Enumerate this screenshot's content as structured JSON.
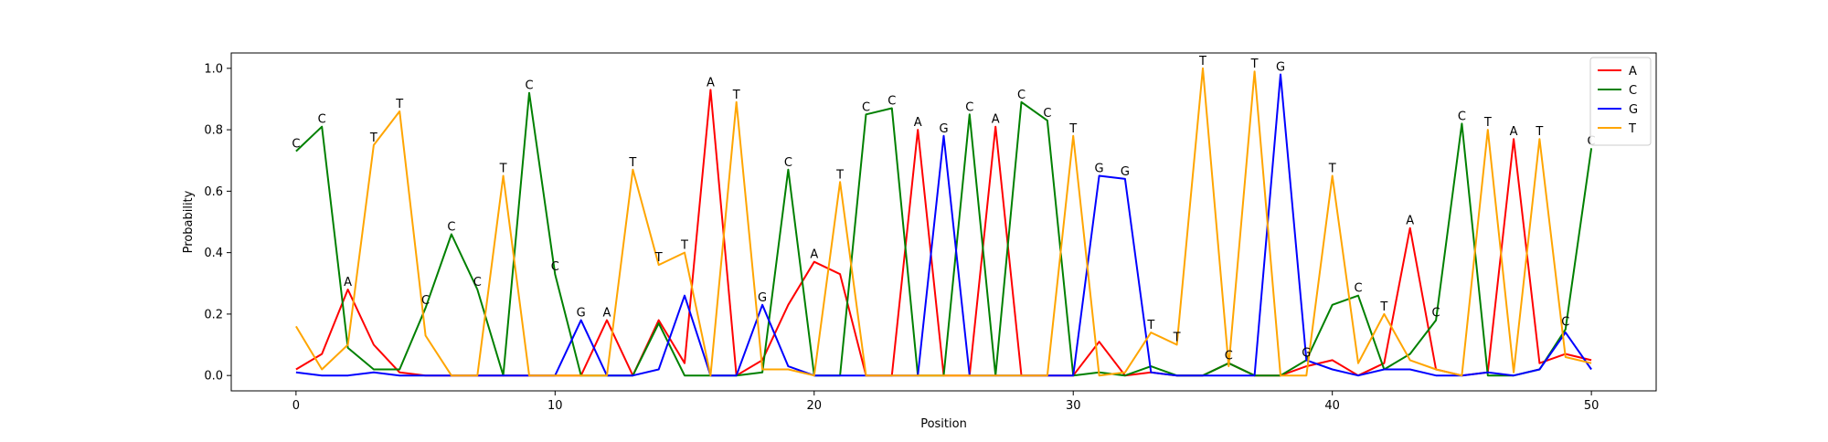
{
  "chart_data": {
    "type": "line",
    "title": "",
    "xlabel": "Position",
    "ylabel": "Probability",
    "xlim": [
      -2.5,
      52.5
    ],
    "ylim": [
      -0.05,
      1.05
    ],
    "xticks": [
      0,
      10,
      20,
      30,
      40,
      50
    ],
    "yticks": [
      0.0,
      0.2,
      0.4,
      0.6,
      0.8,
      1.0
    ],
    "xtick_labels": [
      "0",
      "10",
      "20",
      "30",
      "40",
      "50"
    ],
    "ytick_labels": [
      "0.0",
      "0.2",
      "0.4",
      "0.6",
      "0.8",
      "1.0"
    ],
    "grid": false,
    "legend_position": "top-right",
    "x": [
      0,
      1,
      2,
      3,
      4,
      5,
      6,
      7,
      8,
      9,
      10,
      11,
      12,
      13,
      14,
      15,
      16,
      17,
      18,
      19,
      20,
      21,
      22,
      23,
      24,
      25,
      26,
      27,
      28,
      29,
      30,
      31,
      32,
      33,
      34,
      35,
      36,
      37,
      38,
      39,
      40,
      41,
      42,
      43,
      44,
      45,
      46,
      47,
      48,
      49,
      50
    ],
    "series": [
      {
        "name": "A",
        "color": "#ff0000",
        "values": [
          0.02,
          0.07,
          0.28,
          0.1,
          0.01,
          0.0,
          0.0,
          0.0,
          0.0,
          0.0,
          0.0,
          0.0,
          0.18,
          0.0,
          0.18,
          0.04,
          0.93,
          0.0,
          0.05,
          0.23,
          0.37,
          0.33,
          0.0,
          0.0,
          0.8,
          0.0,
          0.0,
          0.81,
          0.0,
          0.0,
          0.0,
          0.11,
          0.0,
          0.01,
          0.0,
          0.0,
          0.04,
          0.0,
          0.0,
          0.03,
          0.05,
          0.0,
          0.04,
          0.48,
          0.02,
          0.0,
          0.01,
          0.77,
          0.04,
          0.07,
          0.05
        ]
      },
      {
        "name": "C",
        "color": "#008000",
        "values": [
          0.73,
          0.81,
          0.09,
          0.02,
          0.02,
          0.22,
          0.46,
          0.28,
          0.0,
          0.92,
          0.33,
          0.0,
          0.0,
          0.0,
          0.17,
          0.0,
          0.0,
          0.0,
          0.01,
          0.67,
          0.0,
          0.0,
          0.85,
          0.87,
          0.0,
          0.0,
          0.85,
          0.0,
          0.89,
          0.83,
          0.0,
          0.01,
          0.0,
          0.03,
          0.0,
          0.0,
          0.04,
          0.0,
          0.0,
          0.05,
          0.23,
          0.26,
          0.02,
          0.07,
          0.18,
          0.82,
          0.0,
          0.0,
          0.02,
          0.15,
          0.74
        ]
      },
      {
        "name": "G",
        "color": "#0000ff",
        "values": [
          0.01,
          0.0,
          0.0,
          0.01,
          0.0,
          0.0,
          0.0,
          0.0,
          0.0,
          0.0,
          0.0,
          0.18,
          0.0,
          0.0,
          0.02,
          0.26,
          0.0,
          0.0,
          0.23,
          0.03,
          0.0,
          0.0,
          0.0,
          0.0,
          0.0,
          0.78,
          0.0,
          0.0,
          0.0,
          0.0,
          0.0,
          0.65,
          0.64,
          0.01,
          0.0,
          0.0,
          0.0,
          0.0,
          0.98,
          0.05,
          0.02,
          0.0,
          0.02,
          0.02,
          0.0,
          0.0,
          0.01,
          0.0,
          0.02,
          0.14,
          0.02
        ]
      },
      {
        "name": "T",
        "color": "#ffa500",
        "values": [
          0.16,
          0.02,
          0.1,
          0.75,
          0.86,
          0.13,
          0.0,
          0.0,
          0.65,
          0.0,
          0.0,
          0.0,
          0.0,
          0.67,
          0.36,
          0.4,
          0.0,
          0.89,
          0.02,
          0.02,
          0.0,
          0.63,
          0.0,
          0.0,
          0.0,
          0.0,
          0.0,
          0.0,
          0.0,
          0.0,
          0.78,
          0.0,
          0.01,
          0.14,
          0.1,
          1.0,
          0.03,
          0.99,
          0.0,
          0.0,
          0.65,
          0.04,
          0.2,
          0.05,
          0.02,
          0.0,
          0.8,
          0.01,
          0.77,
          0.06,
          0.04
        ]
      }
    ],
    "point_labels": [
      {
        "x": 0,
        "y": 0.73,
        "text": "C"
      },
      {
        "x": 1,
        "y": 0.81,
        "text": "C"
      },
      {
        "x": 2,
        "y": 0.28,
        "text": "A"
      },
      {
        "x": 3,
        "y": 0.75,
        "text": "T"
      },
      {
        "x": 4,
        "y": 0.86,
        "text": "T"
      },
      {
        "x": 5,
        "y": 0.22,
        "text": "C"
      },
      {
        "x": 6,
        "y": 0.46,
        "text": "C"
      },
      {
        "x": 7,
        "y": 0.28,
        "text": "C"
      },
      {
        "x": 8,
        "y": 0.65,
        "text": "T"
      },
      {
        "x": 9,
        "y": 0.92,
        "text": "C"
      },
      {
        "x": 10,
        "y": 0.33,
        "text": "C"
      },
      {
        "x": 11,
        "y": 0.18,
        "text": "G"
      },
      {
        "x": 12,
        "y": 0.18,
        "text": "A"
      },
      {
        "x": 13,
        "y": 0.67,
        "text": "T"
      },
      {
        "x": 14,
        "y": 0.36,
        "text": "T"
      },
      {
        "x": 15,
        "y": 0.4,
        "text": "T"
      },
      {
        "x": 16,
        "y": 0.93,
        "text": "A"
      },
      {
        "x": 17,
        "y": 0.89,
        "text": "T"
      },
      {
        "x": 18,
        "y": 0.23,
        "text": "G"
      },
      {
        "x": 19,
        "y": 0.67,
        "text": "C"
      },
      {
        "x": 20,
        "y": 0.37,
        "text": "A"
      },
      {
        "x": 21,
        "y": 0.63,
        "text": "T"
      },
      {
        "x": 22,
        "y": 0.85,
        "text": "C"
      },
      {
        "x": 23,
        "y": 0.87,
        "text": "C"
      },
      {
        "x": 24,
        "y": 0.8,
        "text": "A"
      },
      {
        "x": 25,
        "y": 0.78,
        "text": "G"
      },
      {
        "x": 26,
        "y": 0.85,
        "text": "C"
      },
      {
        "x": 27,
        "y": 0.81,
        "text": "A"
      },
      {
        "x": 28,
        "y": 0.89,
        "text": "C"
      },
      {
        "x": 29,
        "y": 0.83,
        "text": "C"
      },
      {
        "x": 30,
        "y": 0.78,
        "text": "T"
      },
      {
        "x": 31,
        "y": 0.65,
        "text": "G"
      },
      {
        "x": 32,
        "y": 0.64,
        "text": "G"
      },
      {
        "x": 33,
        "y": 0.14,
        "text": "T"
      },
      {
        "x": 34,
        "y": 0.1,
        "text": "T"
      },
      {
        "x": 35,
        "y": 1.0,
        "text": "T"
      },
      {
        "x": 36,
        "y": 0.04,
        "text": "C"
      },
      {
        "x": 37,
        "y": 0.99,
        "text": "T"
      },
      {
        "x": 38,
        "y": 0.98,
        "text": "G"
      },
      {
        "x": 39,
        "y": 0.05,
        "text": "G"
      },
      {
        "x": 40,
        "y": 0.65,
        "text": "T"
      },
      {
        "x": 41,
        "y": 0.26,
        "text": "C"
      },
      {
        "x": 42,
        "y": 0.2,
        "text": "T"
      },
      {
        "x": 43,
        "y": 0.48,
        "text": "A"
      },
      {
        "x": 44,
        "y": 0.18,
        "text": "C"
      },
      {
        "x": 45,
        "y": 0.82,
        "text": "C"
      },
      {
        "x": 46,
        "y": 0.8,
        "text": "T"
      },
      {
        "x": 47,
        "y": 0.77,
        "text": "A"
      },
      {
        "x": 48,
        "y": 0.77,
        "text": "T"
      },
      {
        "x": 49,
        "y": 0.15,
        "text": "C"
      },
      {
        "x": 50,
        "y": 0.74,
        "text": "C"
      }
    ]
  }
}
